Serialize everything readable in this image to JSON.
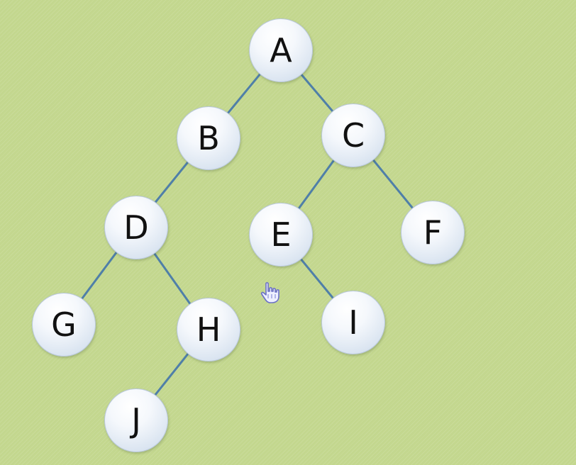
{
  "tree": {
    "nodes": [
      {
        "id": "A",
        "label": "A"
      },
      {
        "id": "B",
        "label": "B"
      },
      {
        "id": "C",
        "label": "C"
      },
      {
        "id": "D",
        "label": "D"
      },
      {
        "id": "E",
        "label": "E"
      },
      {
        "id": "F",
        "label": "F"
      },
      {
        "id": "G",
        "label": "G"
      },
      {
        "id": "H",
        "label": "H"
      },
      {
        "id": "I",
        "label": "I"
      },
      {
        "id": "J",
        "label": "J"
      }
    ],
    "edges": [
      {
        "from": "A",
        "to": "B"
      },
      {
        "from": "A",
        "to": "C"
      },
      {
        "from": "B",
        "to": "D"
      },
      {
        "from": "C",
        "to": "E"
      },
      {
        "from": "C",
        "to": "F"
      },
      {
        "from": "D",
        "to": "G"
      },
      {
        "from": "D",
        "to": "H"
      },
      {
        "from": "E",
        "to": "I"
      },
      {
        "from": "H",
        "to": "J"
      }
    ]
  },
  "colors": {
    "background": "#c3d78e",
    "edge": "#4f7fa8",
    "node_fill": "#eef3f9",
    "node_text": "#111111"
  },
  "cursor": {
    "icon": "hand-pointer-icon"
  }
}
